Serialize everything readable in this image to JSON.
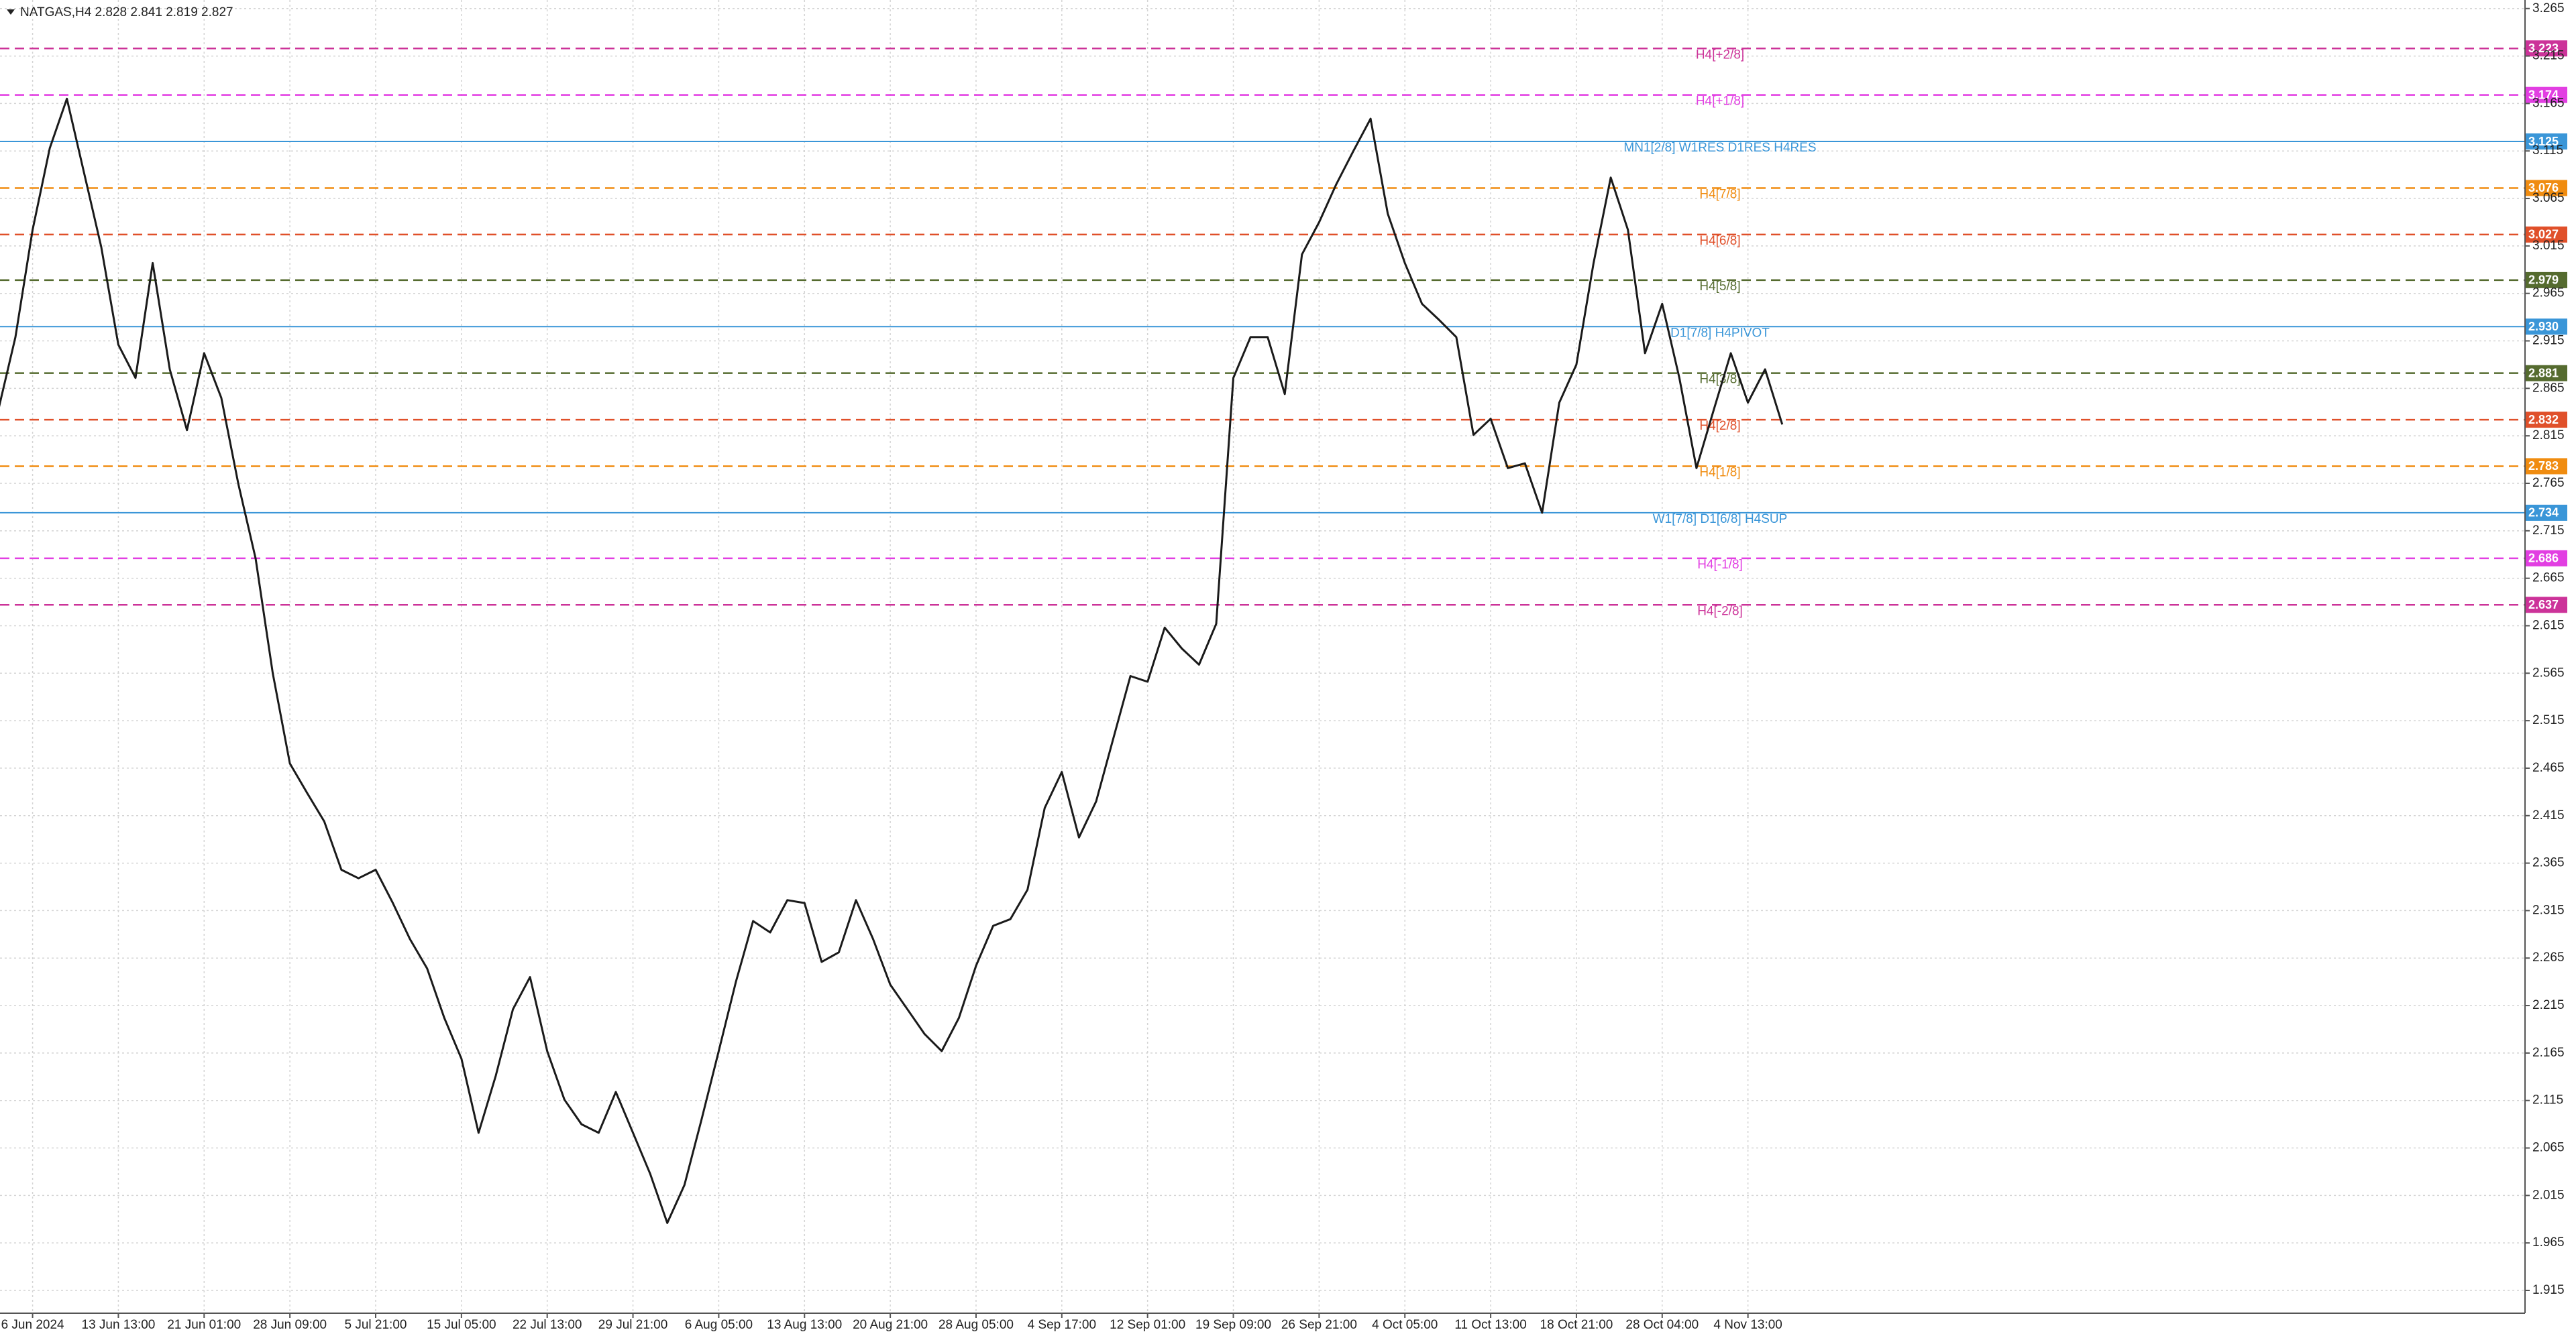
{
  "chart_data": {
    "type": "line",
    "title": "NATGAS,H4  2.828 2.841 2.819 2.827",
    "color": "#1a1a1a",
    "grid": true,
    "x": [
      -0.4,
      -0.2,
      0,
      0.2,
      0.4,
      0.6,
      0.8,
      1,
      1.2,
      1.4,
      1.6,
      1.8,
      2,
      2.2,
      2.4,
      2.6,
      2.8,
      3,
      3.2,
      3.4,
      3.6,
      3.8,
      4,
      4.2,
      4.4,
      4.6,
      4.8,
      5,
      5.2,
      5.4,
      5.6,
      5.8,
      6,
      6.2,
      6.4,
      6.6,
      6.8,
      7,
      7.2,
      7.4,
      7.6,
      7.8,
      8,
      8.2,
      8.4,
      8.6,
      8.8,
      9,
      9.2,
      9.4,
      9.6,
      9.8,
      10,
      10.2,
      10.4,
      10.6,
      10.8,
      11,
      11.2,
      11.4,
      11.6,
      11.8,
      12,
      12.2,
      12.4,
      12.6,
      12.8,
      13,
      13.2,
      13.4,
      13.6,
      13.8,
      14,
      14.2,
      14.4,
      14.6,
      14.8,
      15,
      15.2,
      15.4,
      15.6,
      15.8,
      16,
      16.2,
      16.4,
      16.6,
      16.8,
      17,
      17.2,
      17.4,
      17.6,
      17.8,
      18,
      18.2,
      18.4,
      18.6,
      18.8,
      19,
      19.2,
      19.4,
      19.6,
      19.8,
      20,
      20.2,
      20.4
    ],
    "values": [
      2.842,
      2.919,
      3.032,
      3.118,
      3.17,
      3.092,
      3.014,
      2.911,
      2.876,
      2.997,
      2.885,
      2.821,
      2.902,
      2.855,
      2.764,
      2.686,
      2.565,
      2.47,
      2.439,
      2.409,
      2.358,
      2.349,
      2.358,
      2.323,
      2.285,
      2.254,
      2.202,
      2.159,
      2.081,
      2.141,
      2.211,
      2.245,
      2.167,
      2.116,
      2.09,
      2.081,
      2.124,
      2.081,
      2.038,
      1.986,
      2.026,
      2.095,
      2.167,
      2.24,
      2.304,
      2.292,
      2.326,
      2.323,
      2.261,
      2.271,
      2.326,
      2.285,
      2.237,
      2.211,
      2.185,
      2.167,
      2.202,
      2.257,
      2.299,
      2.306,
      2.337,
      2.423,
      2.461,
      2.392,
      2.43,
      2.496,
      2.562,
      2.556,
      2.613,
      2.591,
      2.574,
      2.617,
      2.876,
      2.919,
      2.919,
      2.859,
      3.006,
      3.04,
      3.08,
      3.115,
      3.149,
      3.049,
      2.997,
      2.954,
      2.937,
      2.919,
      2.816,
      2.833,
      2.781,
      2.786,
      2.734,
      2.85,
      2.89,
      2.997,
      3.087,
      3.032,
      2.902,
      2.954,
      2.876,
      2.781,
      2.842,
      2.902,
      2.85,
      2.885,
      2.827
    ],
    "xlim": [
      -0.38,
      29.06
    ],
    "xticks": [
      {
        "value": 0,
        "label": "6 Jun 2024"
      },
      {
        "value": 1,
        "label": "13 Jun 13:00"
      },
      {
        "value": 2,
        "label": "21 Jun 01:00"
      },
      {
        "value": 3,
        "label": "28 Jun 09:00"
      },
      {
        "value": 4,
        "label": "5 Jul 21:00"
      },
      {
        "value": 5,
        "label": "15 Jul 05:00"
      },
      {
        "value": 6,
        "label": "22 Jul 13:00"
      },
      {
        "value": 7,
        "label": "29 Jul 21:00"
      },
      {
        "value": 8,
        "label": "6 Aug 05:00"
      },
      {
        "value": 9,
        "label": "13 Aug 13:00"
      },
      {
        "value": 10,
        "label": "20 Aug 21:00"
      },
      {
        "value": 11,
        "label": "28 Aug 05:00"
      },
      {
        "value": 12,
        "label": "4 Sep 17:00"
      },
      {
        "value": 13,
        "label": "12 Sep 01:00"
      },
      {
        "value": 14,
        "label": "19 Sep 09:00"
      },
      {
        "value": 15,
        "label": "26 Sep 21:00"
      },
      {
        "value": 16,
        "label": "4 Oct 05:00"
      },
      {
        "value": 17,
        "label": "11 Oct 13:00"
      },
      {
        "value": 18,
        "label": "18 Oct 21:00"
      },
      {
        "value": 19,
        "label": "28 Oct 04:00"
      },
      {
        "value": 20,
        "label": "4 Nov 13:00"
      }
    ],
    "ylim": [
      1.891,
      3.274
    ],
    "yticks": [
      3.265,
      3.215,
      3.165,
      3.115,
      3.065,
      3.015,
      2.965,
      2.915,
      2.865,
      2.815,
      2.765,
      2.715,
      2.665,
      2.615,
      2.565,
      2.515,
      2.465,
      2.415,
      2.365,
      2.315,
      2.265,
      2.215,
      2.165,
      2.115,
      2.065,
      2.015,
      1.965,
      1.915
    ],
    "levels": [
      {
        "value": 3.223,
        "label": "H4[+2/8]",
        "color": "#cc3399",
        "dashed": true
      },
      {
        "value": 3.174,
        "label": "H4[+1/8]",
        "color": "#e23fe2",
        "dashed": true
      },
      {
        "value": 3.125,
        "label": "MN1[2/8] W1RES D1RES H4RES",
        "color": "#3a96d8",
        "dashed": false
      },
      {
        "value": 3.076,
        "label": "H4[7/8]",
        "color": "#f08c10",
        "dashed": true
      },
      {
        "value": 3.027,
        "label": "H4[6/8]",
        "color": "#e0502a",
        "dashed": true
      },
      {
        "value": 2.979,
        "label": "H4[5/8]",
        "color": "#556b2f",
        "dashed": true
      },
      {
        "value": 2.93,
        "value_label": "2.930",
        "label": "D1[7/8] H4PIVOT",
        "color": "#3a96d8",
        "dashed": false
      },
      {
        "value": 2.881,
        "label": "H4[3/8]",
        "color": "#556b2f",
        "dashed": true
      },
      {
        "value": 2.832,
        "label": "H4[2/8]",
        "color": "#e0502a",
        "dashed": true
      },
      {
        "value": 2.783,
        "label": "H4[1/8]",
        "color": "#f08c10",
        "dashed": true
      },
      {
        "value": 2.734,
        "label": "W1[7/8] D1[6/8] H4SUP",
        "color": "#3a96d8",
        "dashed": false
      },
      {
        "value": 2.686,
        "label": "H4[-1/8]",
        "color": "#e23fe2",
        "dashed": true
      },
      {
        "value": 2.637,
        "label": "H4[-2/8]",
        "color": "#cc3399",
        "dashed": true
      }
    ]
  }
}
